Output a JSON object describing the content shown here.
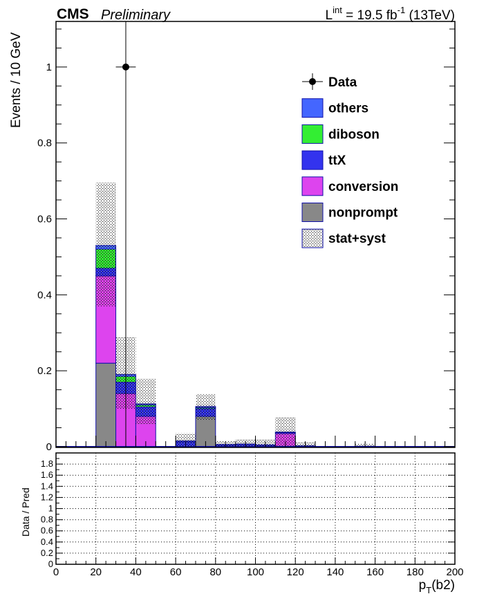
{
  "header": {
    "experiment": "CMS",
    "status": "Preliminary",
    "lumi_prefix": "L",
    "lumi_sup": "int",
    "lumi_value": " = 19.5 fb",
    "lumi_exp": "-1",
    "lumi_energy": " (13TeV)"
  },
  "chart_data": [
    {
      "type": "bar",
      "stacked": true,
      "title": "",
      "xlabel": "p_T(b2)",
      "xlabel_main": "p",
      "xlabel_sub": "T",
      "xlabel_rest": "(b2)",
      "ylabel": "Events / 10 GeV",
      "xlim": [
        0,
        200
      ],
      "ylim": [
        0,
        1.12
      ],
      "yticks": [
        "0",
        "0.2",
        "0.4",
        "0.6",
        "0.8",
        "1"
      ],
      "ytick_values": [
        0,
        0.2,
        0.4,
        0.6,
        0.8,
        1.0
      ],
      "bin_width": 10,
      "bin_low_edges": [
        20,
        30,
        40,
        60,
        70,
        80,
        90,
        100,
        110,
        120,
        150
      ],
      "series": [
        {
          "name": "nonprompt",
          "color": "#888888",
          "values": [
            0.22,
            0.0,
            0.0,
            0.0,
            0.08,
            0.0,
            0.0,
            0.0,
            0.0,
            0.0,
            0.0
          ]
        },
        {
          "name": "conversion",
          "color": "#dd44ee",
          "values": [
            0.23,
            0.14,
            0.08,
            0.0,
            0.0,
            0.0,
            0.0,
            0.0,
            0.035,
            0.0,
            0.0
          ]
        },
        {
          "name": "ttX",
          "color": "#3333ee",
          "values": [
            0.02,
            0.03,
            0.025,
            0.013,
            0.02,
            0.005,
            0.006,
            0.004,
            0.003,
            0.002,
            0.001
          ]
        },
        {
          "name": "diboson",
          "color": "#33ee33",
          "values": [
            0.05,
            0.015,
            0.005,
            0.0,
            0.003,
            0.0,
            0.0,
            0.0,
            0.0,
            0.0,
            0.0
          ]
        },
        {
          "name": "others",
          "color": "#4466ff",
          "values": [
            0.01,
            0.005,
            0.003,
            0.002,
            0.003,
            0.001,
            0.001,
            0.001,
            0.001,
            0.001,
            0.0
          ]
        }
      ],
      "uncertainty": {
        "name": "stat+syst",
        "upper": [
          0.695,
          0.288,
          0.178,
          0.035,
          0.138,
          0.015,
          0.02,
          0.02,
          0.078,
          0.012,
          0.008
        ],
        "lower": [
          0.37,
          0.1,
          0.06,
          0.0,
          0.07,
          0.0,
          0.0,
          0.0,
          0.0,
          0.0,
          0.0
        ]
      },
      "data": {
        "name": "Data",
        "points": [
          {
            "x": 35,
            "y": 1.0,
            "xerr": 5,
            "yerr_up": 1.0,
            "yerr_down": 1.0
          }
        ]
      },
      "legend": {
        "position": "top-right",
        "entries": [
          "Data",
          "others",
          "diboson",
          "ttX",
          "conversion",
          "nonprompt",
          "stat+syst"
        ]
      },
      "grid": false
    },
    {
      "type": "scatter",
      "title": "",
      "xlabel": "",
      "ylabel": "Data / Pred",
      "xlim": [
        0,
        200
      ],
      "ylim": [
        0,
        2
      ],
      "xticks": [
        "0",
        "20",
        "40",
        "60",
        "80",
        "100",
        "120",
        "140",
        "160",
        "180",
        "200"
      ],
      "xtick_values": [
        0,
        20,
        40,
        60,
        80,
        100,
        120,
        140,
        160,
        180,
        200
      ],
      "yticks": [
        "0",
        "0.2",
        "0.4",
        "0.6",
        "0.8",
        "1",
        "1.2",
        "1.4",
        "1.6",
        "1.8"
      ],
      "ytick_values": [
        0,
        0.2,
        0.4,
        0.6,
        0.8,
        1.0,
        1.2,
        1.4,
        1.6,
        1.8
      ],
      "points": [],
      "grid": true
    }
  ]
}
